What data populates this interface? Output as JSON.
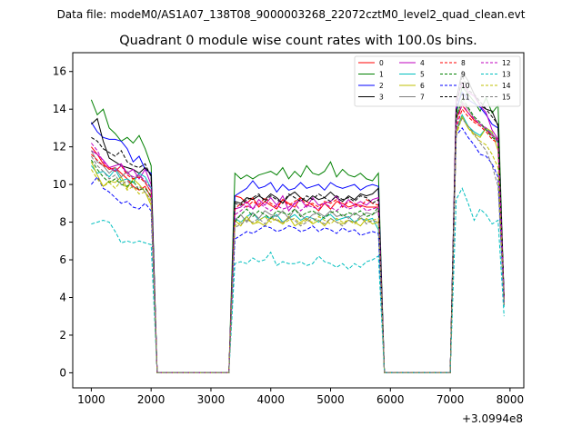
{
  "header": {
    "file_label": "Data file: modeM0/AS1A07_138T08_9000003268_22072cztM0_level2_quad_clean.evt"
  },
  "chart_data": {
    "type": "line",
    "title": "Quadrant 0 module wise count rates with 100.0s bins.",
    "xlabel": "",
    "ylabel": "",
    "x_offset_label": "+3.0994e8",
    "xlim": [
      690,
      8230
    ],
    "ylim": [
      -0.8,
      17
    ],
    "x_ticks": [
      1000,
      2000,
      3000,
      4000,
      5000,
      6000,
      7000,
      8000
    ],
    "y_ticks": [
      0,
      2,
      4,
      6,
      8,
      10,
      12,
      14,
      16
    ],
    "grid": false,
    "legend_position": "top-right",
    "segments": [
      [
        1000,
        2000
      ],
      [
        3400,
        5800
      ],
      [
        7100,
        7800
      ]
    ],
    "gap_times": [
      2100,
      2200,
      3200,
      3300,
      5900,
      6000,
      6900,
      7000
    ],
    "end_time": 7900,
    "series": [
      {
        "name": "0",
        "color": "#ff0000",
        "dashed": false,
        "mean": [
          11.9,
          9.0,
          13.4
        ],
        "values": [
          [
            12.0,
            11.6,
            11.1,
            10.8,
            10.9,
            10.6,
            10.3,
            9.9,
            9.7,
            9.9,
            9.3
          ],
          [
            9.4,
            9.3,
            9.0,
            9.3,
            8.8,
            9.1,
            8.9,
            8.7,
            9.2,
            9.0,
            8.8,
            9.3,
            9.1,
            8.9,
            8.6,
            9.0,
            8.7,
            9.1,
            9.0,
            8.8,
            8.9,
            8.9,
            8.8,
            8.8,
            8.8
          ],
          [
            13.5,
            14.2,
            13.8,
            13.4,
            13.2,
            12.9,
            12.6,
            12.4
          ]
        ],
        "end": 3.9
      },
      {
        "name": "1",
        "color": "#008000",
        "dashed": false,
        "mean": [
          13.2,
          10.5,
          14.6
        ],
        "values": [
          [
            14.5,
            13.7,
            14.0,
            13.0,
            12.7,
            12.3,
            12.5,
            12.2,
            12.6,
            11.9,
            11.0
          ],
          [
            10.6,
            10.3,
            10.5,
            10.3,
            10.5,
            10.6,
            10.7,
            10.5,
            10.9,
            10.3,
            10.7,
            10.4,
            11.0,
            10.6,
            10.5,
            10.7,
            11.2,
            10.4,
            10.8,
            10.5,
            10.4,
            10.6,
            10.3,
            10.2,
            10.6
          ],
          [
            13.7,
            15.2,
            14.8,
            14.4,
            13.9,
            14.6,
            13.8,
            14.2
          ]
        ],
        "end": 4.0
      },
      {
        "name": "2",
        "color": "#0000ff",
        "dashed": false,
        "mean": [
          11.9,
          9.8,
          14.1
        ],
        "values": [
          [
            13.3,
            12.8,
            12.5,
            12.4,
            12.4,
            12.3,
            11.9,
            11.2,
            11.5,
            10.8,
            10.6
          ],
          [
            9.4,
            9.6,
            9.8,
            10.2,
            9.8,
            9.9,
            10.1,
            9.6,
            10.0,
            9.7,
            9.8,
            10.1,
            9.8,
            9.9,
            10.0,
            9.7,
            10.1,
            9.9,
            9.8,
            9.9,
            10.0,
            9.7,
            9.9,
            10.0,
            9.9
          ],
          [
            14.0,
            14.9,
            14.5,
            14.3,
            14.1,
            13.7,
            13.2,
            13.0
          ]
        ],
        "end": 4.0
      },
      {
        "name": "3",
        "color": "#000000",
        "dashed": false,
        "mean": [
          11.6,
          9.3,
          14.4
        ],
        "values": [
          [
            13.2,
            13.5,
            12.3,
            11.4,
            11.2,
            11.0,
            10.9,
            10.8,
            10.6,
            10.9,
            10.5
          ],
          [
            9.1,
            9.0,
            9.3,
            9.2,
            9.4,
            9.2,
            9.5,
            9.3,
            9.0,
            9.4,
            9.6,
            9.3,
            9.1,
            9.4,
            9.2,
            9.3,
            9.6,
            9.3,
            9.1,
            9.4,
            9.2,
            9.5,
            9.4,
            9.5,
            9.8
          ],
          [
            14.5,
            16.0,
            15.5,
            14.8,
            14.2,
            14.0,
            13.9,
            13.1
          ]
        ],
        "end": 4.0
      },
      {
        "name": "4",
        "color": "#bf00bf",
        "dashed": false,
        "mean": [
          11.0,
          9.0,
          14.1
        ],
        "values": [
          [
            11.8,
            11.6,
            11.3,
            10.9,
            11.0,
            11.1,
            10.6,
            10.8,
            10.3,
            10.8,
            10.0
          ],
          [
            8.7,
            8.8,
            9.1,
            8.7,
            9.2,
            8.9,
            9.3,
            8.9,
            9.4,
            8.6,
            9.0,
            9.2,
            8.8,
            9.3,
            8.9,
            9.0,
            9.1,
            9.4,
            8.8,
            9.2,
            8.9,
            9.1,
            8.9,
            9.2,
            9.3
          ],
          [
            14.4,
            15.4,
            14.9,
            14.7,
            14.2,
            13.8,
            12.9,
            12.4
          ]
        ],
        "end": 4.0
      },
      {
        "name": "5",
        "color": "#00bfbf",
        "dashed": false,
        "mean": [
          10.5,
          8.2,
          12.9
        ],
        "values": [
          [
            11.0,
            10.6,
            10.7,
            10.4,
            10.8,
            10.2,
            10.3,
            10.1,
            10.6,
            10.4,
            9.8
          ],
          [
            8.2,
            8.0,
            8.3,
            8.5,
            8.1,
            8.3,
            8.2,
            8.4,
            8.0,
            8.2,
            8.4,
            8.1,
            8.3,
            8.2,
            8.0,
            8.3,
            8.4,
            8.1,
            8.2,
            8.3,
            8.0,
            8.2,
            8.1,
            8.2,
            7.6
          ],
          [
            12.9,
            13.7,
            13.1,
            12.8,
            12.6,
            13.0,
            12.7,
            12.2
          ]
        ],
        "end": 3.5
      },
      {
        "name": "6",
        "color": "#bfbf00",
        "dashed": false,
        "mean": [
          10.3,
          8.0,
          12.9
        ],
        "values": [
          [
            11.2,
            10.5,
            9.9,
            10.2,
            10.1,
            10.4,
            9.8,
            10.3,
            10.0,
            9.6,
            8.9
          ],
          [
            8.1,
            7.8,
            8.3,
            7.9,
            8.0,
            7.8,
            8.2,
            8.1,
            7.9,
            8.3,
            7.8,
            8.0,
            8.2,
            7.9,
            8.1,
            7.8,
            8.2,
            8.0,
            7.9,
            8.1,
            8.0,
            7.8,
            8.2,
            7.9,
            8.0
          ],
          [
            12.8,
            13.6,
            13.0,
            12.7,
            12.5,
            13.0,
            12.8,
            11.8
          ]
        ],
        "end": 3.6
      },
      {
        "name": "7",
        "color": "#7f7f7f",
        "dashed": false,
        "mean": [
          10.9,
          8.3,
          13.2
        ],
        "values": [
          [
            11.8,
            11.2,
            11.0,
            10.6,
            10.9,
            10.4,
            10.7,
            10.3,
            10.5,
            10.1,
            9.6
          ],
          [
            8.1,
            8.4,
            8.0,
            8.5,
            8.2,
            8.6,
            8.4,
            8.3,
            8.6,
            8.2,
            8.7,
            8.4,
            8.1,
            8.4,
            8.5,
            8.3,
            8.6,
            8.3,
            8.4,
            8.2,
            8.5,
            8.3,
            8.5,
            8.4,
            8.6
          ],
          [
            13.6,
            14.4,
            14.0,
            13.5,
            13.2,
            12.9,
            12.7,
            12.3
          ]
        ],
        "end": 3.9
      },
      {
        "name": "8",
        "color": "#ff0000",
        "dashed": true,
        "mean": [
          11.4,
          9.0,
          13.5
        ],
        "values": [
          [
            11.6,
            11.3,
            11.0,
            10.9,
            10.7,
            11.0,
            10.5,
            10.3,
            10.4,
            10.1,
            9.6
          ],
          [
            8.7,
            9.0,
            8.8,
            9.1,
            8.9,
            9.3,
            9.0,
            8.8,
            9.2,
            8.9,
            9.1,
            9.3,
            8.9,
            9.0,
            8.8,
            9.1,
            9.0,
            9.2,
            8.8,
            9.1,
            9.0,
            8.8,
            9.2,
            9.0,
            8.9
          ],
          [
            13.0,
            14.0,
            13.6,
            13.3,
            13.1,
            12.8,
            12.4,
            12.2
          ]
        ],
        "end": 3.8
      },
      {
        "name": "9",
        "color": "#008000",
        "dashed": true,
        "mean": [
          10.6,
          8.5,
          13.3
        ],
        "values": [
          [
            11.3,
            10.8,
            10.4,
            10.1,
            10.3,
            10.0,
            9.9,
            10.2,
            9.7,
            9.8,
            9.4
          ],
          [
            8.0,
            8.4,
            8.7,
            8.3,
            8.6,
            8.4,
            8.2,
            8.6,
            8.5,
            8.4,
            8.7,
            8.3,
            8.5,
            8.6,
            8.4,
            8.2,
            8.5,
            8.6,
            8.3,
            8.5,
            8.4,
            8.6,
            8.3,
            8.4,
            8.8
          ],
          [
            13.5,
            14.6,
            14.1,
            13.6,
            13.3,
            12.9,
            12.5,
            12.3
          ]
        ],
        "end": 3.7
      },
      {
        "name": "10",
        "color": "#0000ff",
        "dashed": true,
        "mean": [
          10.0,
          7.6,
          12.4
        ],
        "values": [
          [
            10.0,
            10.4,
            9.8,
            9.6,
            9.3,
            9.0,
            9.1,
            8.8,
            8.7,
            9.0,
            8.6
          ],
          [
            7.1,
            7.3,
            7.5,
            7.4,
            7.6,
            7.8,
            7.7,
            7.5,
            7.6,
            7.8,
            7.7,
            7.5,
            7.6,
            7.8,
            7.5,
            7.7,
            7.6,
            7.4,
            7.7,
            7.5,
            7.6,
            7.3,
            7.4,
            7.5,
            7.4
          ],
          [
            12.6,
            13.0,
            12.5,
            12.1,
            11.6,
            11.5,
            11.1,
            10.4
          ]
        ],
        "end": 3.6
      },
      {
        "name": "11",
        "color": "#000000",
        "dashed": true,
        "mean": [
          11.9,
          9.3,
          14.6
        ],
        "values": [
          [
            12.5,
            12.3,
            11.9,
            11.7,
            11.5,
            11.8,
            11.2,
            11.0,
            10.9,
            11.1,
            10.4
          ],
          [
            9.0,
            8.9,
            9.2,
            9.3,
            9.5,
            9.1,
            9.4,
            9.2,
            9.0,
            9.5,
            9.3,
            9.1,
            9.4,
            9.2,
            9.5,
            9.3,
            9.1,
            9.4,
            9.2,
            9.3,
            9.1,
            9.4,
            9.3,
            9.0,
            9.2
          ],
          [
            14.0,
            15.8,
            15.0,
            14.8,
            14.4,
            14.0,
            13.6,
            13.2
          ]
        ],
        "end": 4.0
      },
      {
        "name": "12",
        "color": "#bf00bf",
        "dashed": true,
        "mean": [
          11.5,
          8.8,
          13.5
        ],
        "values": [
          [
            12.2,
            11.8,
            11.2,
            10.9,
            10.7,
            11.0,
            10.6,
            10.4,
            10.5,
            10.2,
            9.8
          ],
          [
            8.4,
            8.6,
            8.9,
            8.7,
            9.0,
            8.8,
            8.6,
            8.9,
            8.7,
            8.8,
            9.0,
            8.6,
            8.9,
            8.8,
            8.7,
            9.0,
            8.8,
            8.6,
            8.9,
            8.7,
            8.8,
            8.9,
            8.6,
            8.7,
            8.8
          ],
          [
            13.2,
            14.3,
            13.8,
            13.5,
            13.2,
            13.0,
            12.6,
            12.3
          ]
        ],
        "end": 3.8
      },
      {
        "name": "13",
        "color": "#00bfbf",
        "dashed": true,
        "mean": [
          7.9,
          6.0,
          9.1
        ],
        "values": [
          [
            7.9,
            8.0,
            8.1,
            8.0,
            7.5,
            6.9,
            7.0,
            6.9,
            7.0,
            6.9,
            6.8
          ],
          [
            5.8,
            5.9,
            5.8,
            6.1,
            5.9,
            6.0,
            6.4,
            5.7,
            5.9,
            5.8,
            5.8,
            5.9,
            5.7,
            5.8,
            6.2,
            5.9,
            5.8,
            5.6,
            5.8,
            5.5,
            5.8,
            5.6,
            5.9,
            6.0,
            6.2
          ],
          [
            9.2,
            9.8,
            9.0,
            8.1,
            8.7,
            8.4,
            7.9,
            8.1
          ]
        ],
        "end": 3.0
      },
      {
        "name": "14",
        "color": "#bfbf00",
        "dashed": true,
        "mean": [
          10.3,
          8.1,
          12.7
        ],
        "values": [
          [
            10.8,
            10.3,
            9.9,
            10.1,
            9.8,
            10.2,
            9.7,
            9.9,
            9.5,
            9.6,
            9.1
          ],
          [
            7.8,
            8.0,
            8.2,
            7.9,
            8.1,
            8.3,
            8.0,
            8.2,
            7.9,
            8.1,
            8.2,
            7.9,
            8.1,
            8.0,
            8.3,
            8.1,
            7.9,
            8.2,
            8.0,
            8.1,
            7.9,
            8.2,
            8.0,
            8.1,
            8.2
          ],
          [
            12.6,
            13.6,
            13.0,
            12.6,
            12.3,
            12.1,
            11.6,
            10.9
          ]
        ],
        "end": 3.7
      },
      {
        "name": "15",
        "color": "#7f7f7f",
        "dashed": true,
        "mean": [
          10.9,
          8.1,
          12.6
        ],
        "values": [
          [
            11.5,
            11.0,
            10.7,
            10.3,
            10.5,
            10.0,
            10.2,
            9.8,
            9.9,
            9.6,
            9.2
          ],
          [
            7.7,
            7.9,
            8.1,
            8.0,
            8.2,
            7.9,
            8.3,
            8.1,
            8.0,
            8.2,
            8.1,
            7.8,
            8.0,
            8.2,
            8.1,
            7.9,
            8.2,
            8.0,
            7.8,
            8.1,
            8.0,
            8.3,
            7.9,
            8.1,
            8.0
          ],
          [
            12.9,
            13.5,
            13.1,
            12.7,
            12.2,
            11.8,
            11.0,
            9.9
          ]
        ],
        "end": 3.6
      }
    ]
  }
}
